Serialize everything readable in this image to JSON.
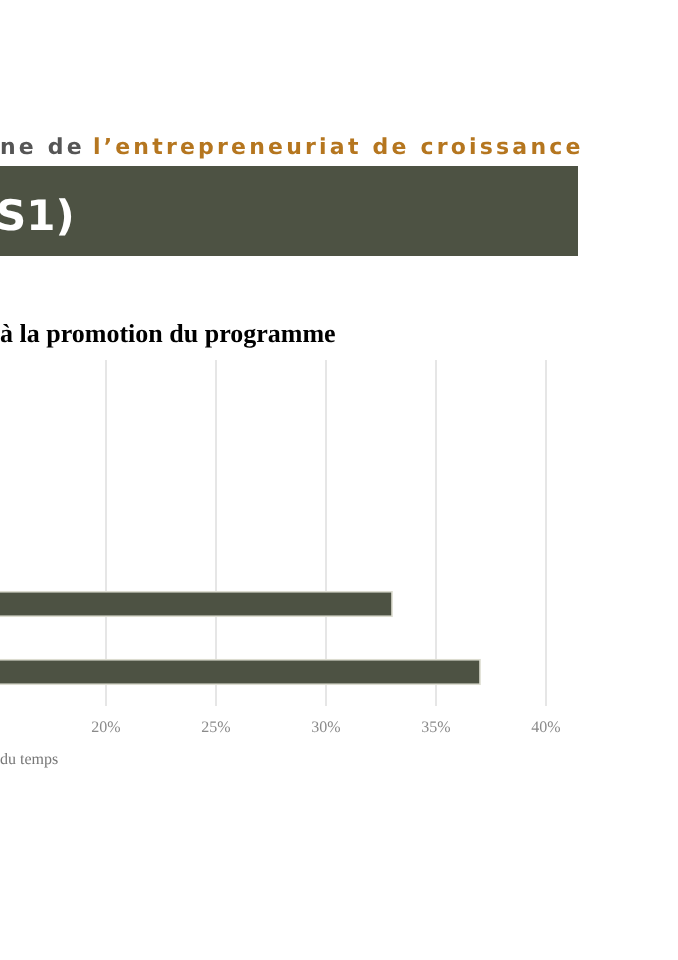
{
  "chart_data": {
    "type": "bar",
    "orientation": "horizontal",
    "title": "à la promotion du programme",
    "annotations": [
      "ne de",
      "l’entrepreneuriat de croissance",
      "S1)",
      "du temps"
    ],
    "categories": [
      null,
      null
    ],
    "values": [
      33,
      37
    ],
    "color": "#4d5243",
    "xlim": [
      0,
      40
    ],
    "xticks": [
      {
        "value": 20,
        "label": "20%"
      },
      {
        "value": 25,
        "label": "25%"
      },
      {
        "value": 30,
        "label": "30%"
      },
      {
        "value": 35,
        "label": "35%"
      },
      {
        "value": 40,
        "label": "40%"
      }
    ],
    "grid": "x",
    "tick_labels": "x"
  }
}
